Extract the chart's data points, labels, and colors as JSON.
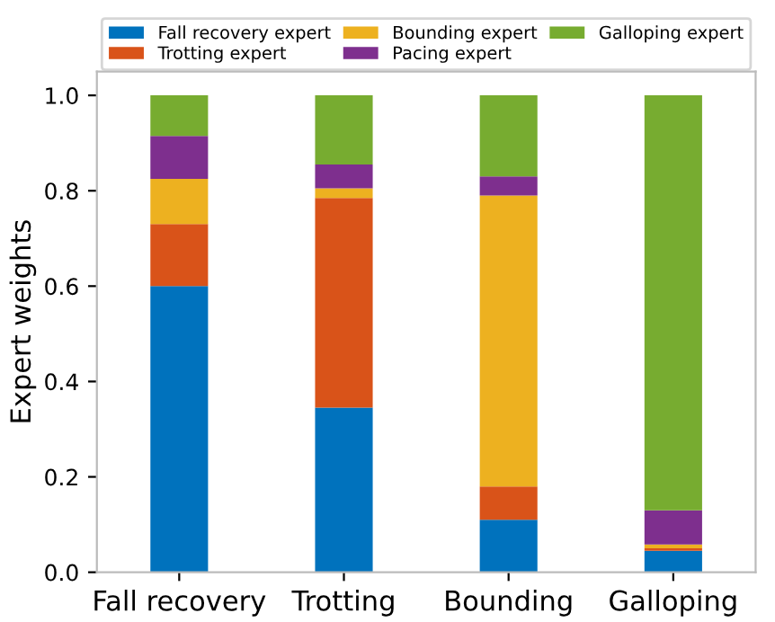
{
  "chart_data": {
    "type": "bar",
    "stacked": true,
    "ylabel": "Expert weights",
    "categories": [
      "Fall recovery",
      "Trotting",
      "Bounding",
      "Galloping"
    ],
    "series": [
      {
        "name": "Fall recovery expert",
        "color": "#0072bd",
        "values": [
          0.6,
          0.345,
          0.11,
          0.045
        ]
      },
      {
        "name": "Trotting expert",
        "color": "#d95319",
        "values": [
          0.13,
          0.44,
          0.07,
          0.005
        ]
      },
      {
        "name": "Bounding expert",
        "color": "#edb120",
        "values": [
          0.095,
          0.02,
          0.61,
          0.008
        ]
      },
      {
        "name": "Pacing expert",
        "color": "#7e2f8e",
        "values": [
          0.09,
          0.05,
          0.04,
          0.072
        ]
      },
      {
        "name": "Galloping expert",
        "color": "#77ac30",
        "values": [
          0.085,
          0.145,
          0.17,
          0.87
        ]
      }
    ],
    "ylim": [
      0,
      1.05
    ],
    "yticks": [
      {
        "value": 0,
        "label": "0.0"
      },
      {
        "value": 0.2,
        "label": "0.2"
      },
      {
        "value": 0.4,
        "label": "0.4"
      },
      {
        "value": 0.6,
        "label": "0.6"
      },
      {
        "value": 0.8,
        "label": "0.8"
      },
      {
        "value": 1,
        "label": "1.0"
      }
    ],
    "grid": false,
    "legend": "top"
  }
}
